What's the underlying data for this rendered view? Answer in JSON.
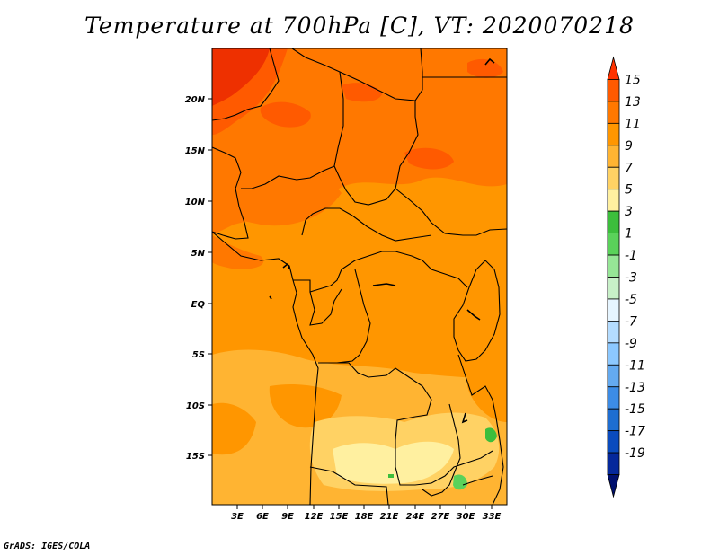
{
  "title": "Temperature at 700hPa [C], VT: 2020070218",
  "credit": "GrADS: IGES/COLA",
  "lat_labels": [
    "20N",
    "15N",
    "10N",
    "5N",
    "EQ",
    "5S",
    "10S",
    "15S"
  ],
  "lon_labels": [
    "3E",
    "6E",
    "9E",
    "12E",
    "15E",
    "18E",
    "21E",
    "24E",
    "27E",
    "30E",
    "33E"
  ],
  "colorbar": {
    "labels": [
      "15",
      "13",
      "11",
      "9",
      "7",
      "5",
      "3",
      "1",
      "-1",
      "-3",
      "-5",
      "-7",
      "-9",
      "-11",
      "-13",
      "-15",
      "-17",
      "-19"
    ],
    "colors": [
      "#ff3300",
      "#ff5a00",
      "#ff7800",
      "#ff9600",
      "#ffb432",
      "#ffd264",
      "#fff0a0",
      "#3cbe3c",
      "#5ad25a",
      "#96e696",
      "#c8f0c8",
      "#e6f5ff",
      "#b4dcff",
      "#8cc8ff",
      "#64aaf0",
      "#3c8ce6",
      "#1e6ed2",
      "#0a4bbe",
      "#05289b",
      "#00106e"
    ]
  }
}
